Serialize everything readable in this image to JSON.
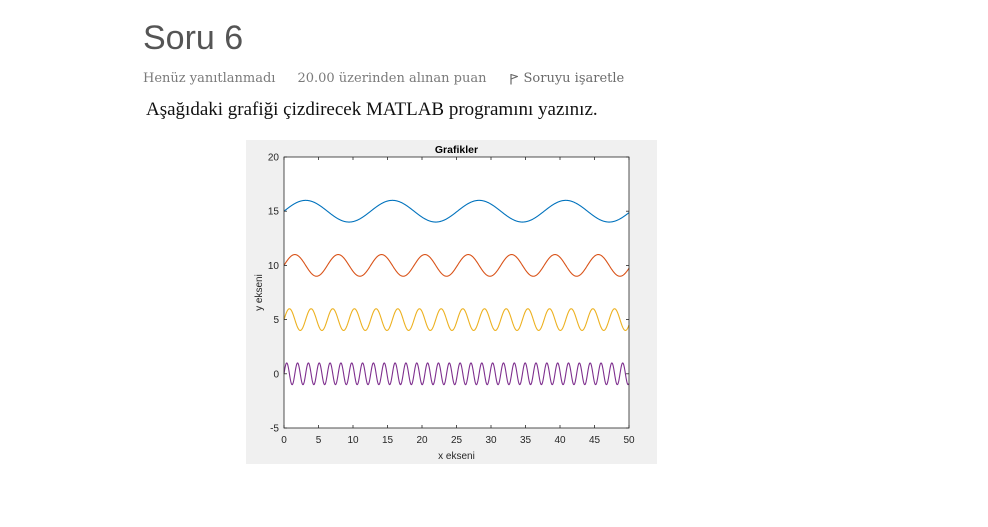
{
  "question": {
    "title": "Soru 6",
    "status": "Henüz yanıtlanmadı",
    "grade": "20.00 üzerinden alınan puan",
    "flag_label": "Soruyu işaretle",
    "flag_icon": "flag-icon",
    "text": "Aşağıdaki grafiği çizdirecek MATLAB programını yazınız."
  },
  "chart_data": {
    "type": "line",
    "title": "Grafikler",
    "xlabel": "x ekseni",
    "ylabel": "y ekseni",
    "xlim": [
      0,
      50
    ],
    "ylim": [
      -5,
      20
    ],
    "xticks": [
      0,
      5,
      10,
      15,
      20,
      25,
      30,
      35,
      40,
      45,
      50
    ],
    "yticks": [
      -5,
      0,
      5,
      10,
      15,
      20
    ],
    "grid": false,
    "series": [
      {
        "function": "15 + sin(x/2)",
        "offset": 15,
        "amplitude": 1,
        "frequency": 0.5,
        "color": "#0072BD"
      },
      {
        "function": "10 + sin(x)",
        "offset": 10,
        "amplitude": 1,
        "frequency": 1,
        "color": "#D95319"
      },
      {
        "function": "5 + sin(2x)",
        "offset": 5,
        "amplitude": 1,
        "frequency": 2,
        "color": "#EDB120"
      },
      {
        "function": "sin(4x)",
        "offset": 0,
        "amplitude": 1,
        "frequency": 4,
        "color": "#7E2F8E"
      }
    ]
  }
}
